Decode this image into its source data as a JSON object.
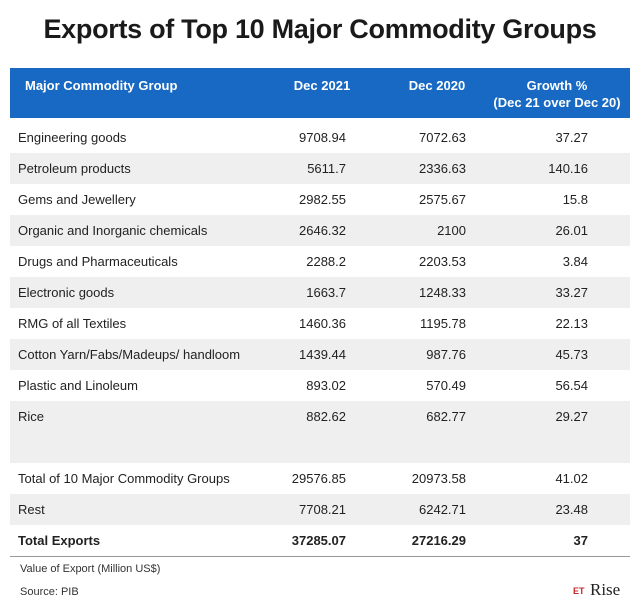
{
  "header": {
    "title": "Exports of Top 10 Major Commodity Groups"
  },
  "table": {
    "columns": [
      "Major Commodity Group",
      "Dec 2021",
      "Dec 2020",
      [
        "Growth %",
        "(Dec 21 over Dec 20)"
      ]
    ],
    "rows": [
      [
        "Engineering goods",
        "9708.94",
        "7072.63",
        "37.27"
      ],
      [
        "Petroleum products",
        "5611.7",
        "2336.63",
        "140.16"
      ],
      [
        "Gems and Jewellery",
        "2982.55",
        "2575.67",
        "15.8"
      ],
      [
        "Organic and Inorganic chemicals",
        "2646.32",
        "2100",
        "26.01"
      ],
      [
        "Drugs and Pharmaceuticals",
        "2288.2",
        "2203.53",
        "3.84"
      ],
      [
        "Electronic goods",
        "1663.7",
        "1248.33",
        "33.27"
      ],
      [
        "RMG of all Textiles",
        "1460.36",
        "1195.78",
        "22.13"
      ],
      [
        "Cotton Yarn/Fabs/Madeups/ handloom",
        "1439.44",
        "987.76",
        "45.73"
      ],
      [
        "Plastic and Linoleum",
        "893.02",
        "570.49",
        "56.54"
      ],
      [
        "Rice",
        "882.62",
        "682.77",
        "29.27"
      ]
    ],
    "totals": [
      [
        "Total of 10 Major Commodity Groups",
        "29576.85",
        "20973.58",
        "41.02"
      ],
      [
        "Rest",
        "7708.21",
        "6242.71",
        "23.48"
      ],
      [
        "Total Exports",
        "37285.07",
        "27216.29",
        "37"
      ]
    ]
  },
  "notes": [
    "Value of Export (Million US$)",
    "Source: PIB"
  ],
  "logo": {
    "mark": "ET",
    "text": "Rise"
  }
}
